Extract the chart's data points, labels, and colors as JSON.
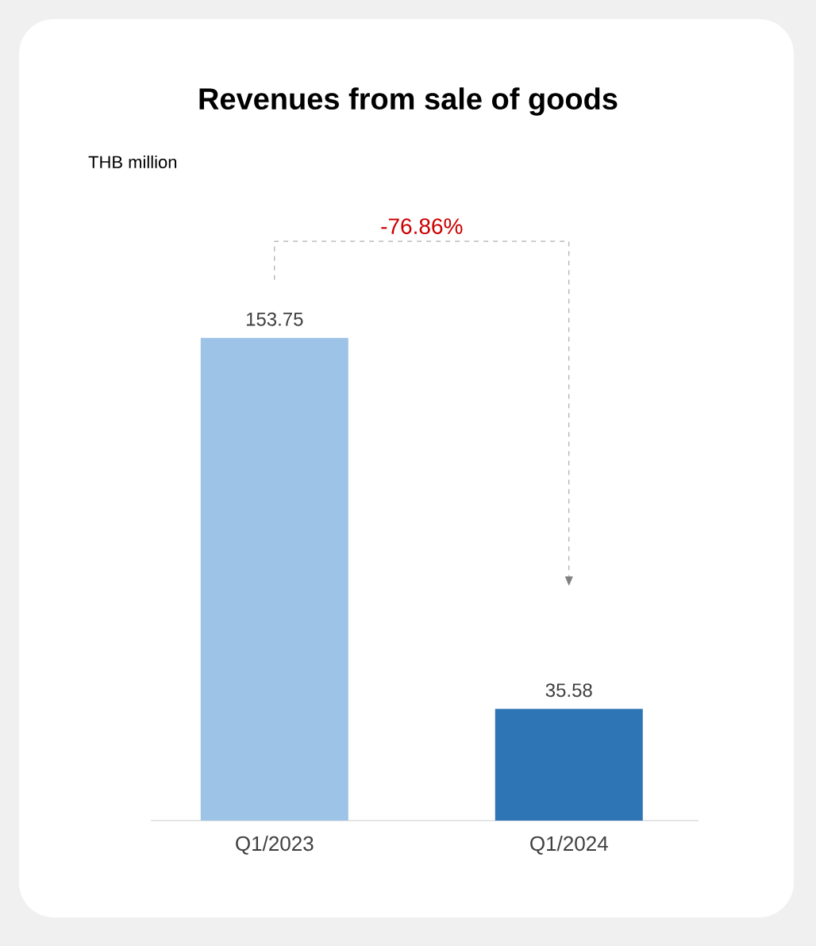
{
  "chart_data": {
    "type": "bar",
    "title": "Revenues from sale of goods",
    "subtitle": "THB million",
    "categories": [
      "Q1/2023",
      "Q1/2024"
    ],
    "values": [
      153.75,
      35.58
    ],
    "colors": [
      "#9dc3e6",
      "#2e75b6"
    ],
    "data_labels": true,
    "annotations": [
      "-76.86%"
    ],
    "tick_labels": "x"
  }
}
